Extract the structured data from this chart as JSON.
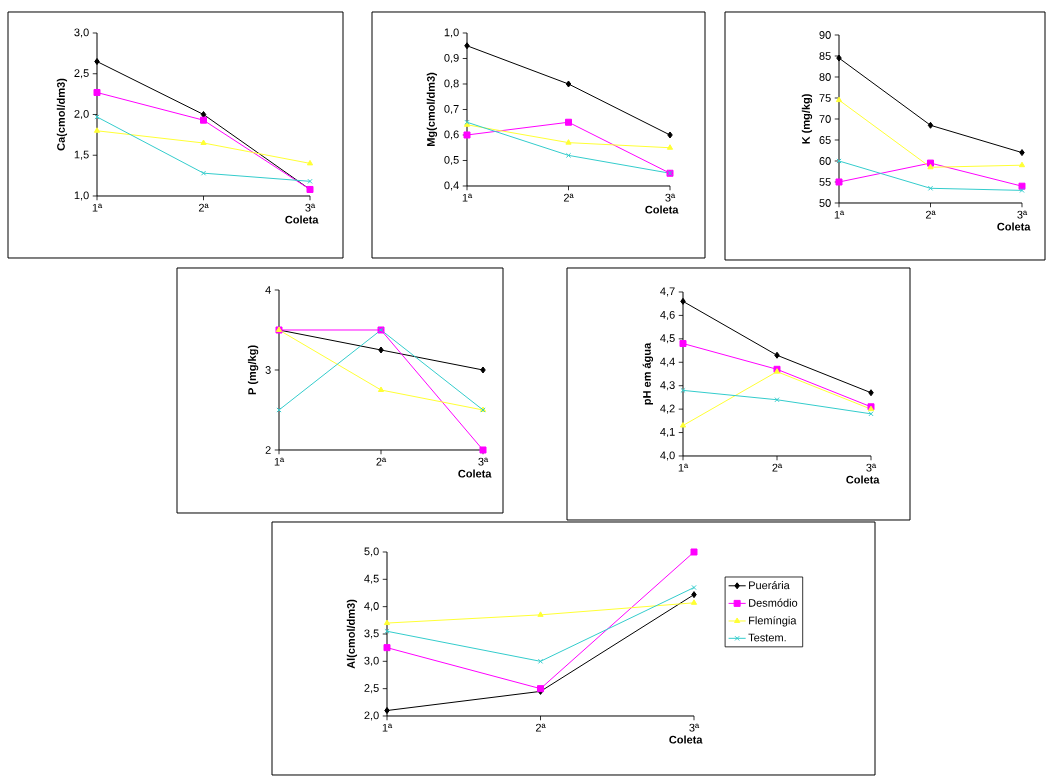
{
  "chart_data": [
    {
      "type": "line",
      "ylabel": "Ca(cmol/dm3)",
      "xlabel": "Coleta",
      "categories": [
        "1ª",
        "2ª",
        "3ª"
      ],
      "ylim": [
        1.0,
        3.0
      ],
      "yticks": [
        {
          "value": 1.0,
          "label": "1,0"
        },
        {
          "value": 1.5,
          "label": "1,5"
        },
        {
          "value": 2.0,
          "label": "2,0"
        },
        {
          "value": 2.5,
          "label": "2,5"
        },
        {
          "value": 3.0,
          "label": "3,0"
        }
      ],
      "legend": false,
      "series": [
        {
          "color": "#000000",
          "marker": "diamond",
          "values": [
            2.65,
            2.0,
            1.08
          ]
        },
        {
          "color": "#ff00ff",
          "marker": "square",
          "values": [
            2.27,
            1.93,
            1.08
          ]
        },
        {
          "color": "#ffff33",
          "marker": "triangle",
          "values": [
            1.8,
            1.65,
            1.4
          ]
        },
        {
          "color": "#33cccc",
          "marker": "cross",
          "values": [
            1.97,
            1.28,
            1.18
          ]
        }
      ]
    },
    {
      "type": "line",
      "ylabel": "Mg(cmol/dm3)",
      "xlabel": "Coleta",
      "categories": [
        "1ª",
        "2ª",
        "3ª"
      ],
      "ylim": [
        0.4,
        1.0
      ],
      "yticks": [
        {
          "value": 0.4,
          "label": "0,4"
        },
        {
          "value": 0.5,
          "label": "0,5"
        },
        {
          "value": 0.6,
          "label": "0,6"
        },
        {
          "value": 0.7,
          "label": "0,7"
        },
        {
          "value": 0.8,
          "label": "0,8"
        },
        {
          "value": 0.9,
          "label": "0,9"
        },
        {
          "value": 1.0,
          "label": "1,0"
        }
      ],
      "legend": false,
      "series": [
        {
          "color": "#000000",
          "marker": "diamond",
          "values": [
            0.95,
            0.8,
            0.6
          ]
        },
        {
          "color": "#ff00ff",
          "marker": "square",
          "values": [
            0.6,
            0.65,
            0.45
          ]
        },
        {
          "color": "#ffff33",
          "marker": "triangle",
          "values": [
            0.64,
            0.57,
            0.55
          ]
        },
        {
          "color": "#33cccc",
          "marker": "cross",
          "values": [
            0.65,
            0.52,
            0.45
          ]
        }
      ]
    },
    {
      "type": "line",
      "ylabel": "K (mg/kg)",
      "xlabel": "Coleta",
      "categories": [
        "1ª",
        "2ª",
        "3ª"
      ],
      "ylim": [
        50,
        90
      ],
      "yticks": [
        50,
        55,
        60,
        65,
        70,
        75,
        80,
        85,
        90
      ],
      "legend": false,
      "series": [
        {
          "color": "#000000",
          "marker": "diamond",
          "values": [
            84.5,
            68.5,
            62
          ]
        },
        {
          "color": "#ff00ff",
          "marker": "square",
          "values": [
            55,
            59.5,
            54
          ]
        },
        {
          "color": "#ffff33",
          "marker": "triangle",
          "values": [
            74.5,
            58.5,
            59
          ]
        },
        {
          "color": "#33cccc",
          "marker": "cross",
          "values": [
            60,
            53.5,
            53
          ]
        }
      ]
    },
    {
      "type": "line",
      "ylabel": "P (mg/kg)",
      "xlabel": "Coleta",
      "categories": [
        "1ª",
        "2ª",
        "3ª"
      ],
      "ylim": [
        2,
        4
      ],
      "yticks": [
        2,
        3,
        4
      ],
      "legend": false,
      "series": [
        {
          "color": "#000000",
          "marker": "diamond",
          "values": [
            3.5,
            3.25,
            3.0
          ]
        },
        {
          "color": "#ff00ff",
          "marker": "square",
          "values": [
            3.5,
            3.5,
            2.0
          ]
        },
        {
          "color": "#ffff33",
          "marker": "triangle",
          "values": [
            3.5,
            2.75,
            2.5
          ]
        },
        {
          "color": "#33cccc",
          "marker": "cross",
          "values": [
            2.5,
            3.5,
            2.5
          ]
        }
      ]
    },
    {
      "type": "line",
      "ylabel": "pH em água",
      "xlabel": "Coleta",
      "categories": [
        "1ª",
        "2ª",
        "3ª"
      ],
      "ylim": [
        4.0,
        4.7
      ],
      "yticks": [
        {
          "value": 4.0,
          "label": "4,0"
        },
        {
          "value": 4.1,
          "label": "4,1"
        },
        {
          "value": 4.2,
          "label": "4,2"
        },
        {
          "value": 4.3,
          "label": "4,3"
        },
        {
          "value": 4.4,
          "label": "4,4"
        },
        {
          "value": 4.5,
          "label": "4,5"
        },
        {
          "value": 4.6,
          "label": "4,6"
        },
        {
          "value": 4.7,
          "label": "4,7"
        }
      ],
      "legend": false,
      "series": [
        {
          "color": "#000000",
          "marker": "diamond",
          "values": [
            4.66,
            4.43,
            4.27
          ]
        },
        {
          "color": "#ff00ff",
          "marker": "square",
          "values": [
            4.48,
            4.37,
            4.21
          ]
        },
        {
          "color": "#ffff33",
          "marker": "triangle",
          "values": [
            4.13,
            4.36,
            4.2
          ]
        },
        {
          "color": "#33cccc",
          "marker": "cross",
          "values": [
            4.28,
            4.24,
            4.18
          ]
        }
      ]
    },
    {
      "type": "line",
      "ylabel": "Al(cmol/dm3)",
      "xlabel": "Coleta",
      "categories": [
        "1ª",
        "2ª",
        "3ª"
      ],
      "ylim": [
        2.0,
        5.0
      ],
      "yticks": [
        {
          "value": 2.0,
          "label": "2,0"
        },
        {
          "value": 2.5,
          "label": "2,5"
        },
        {
          "value": 3.0,
          "label": "3,0"
        },
        {
          "value": 3.5,
          "label": "3,5"
        },
        {
          "value": 4.0,
          "label": "4,0"
        },
        {
          "value": 4.5,
          "label": "4,5"
        },
        {
          "value": 5.0,
          "label": "5,0"
        }
      ],
      "legend": "right",
      "series": [
        {
          "name": "Puerária",
          "color": "#000000",
          "marker": "diamond",
          "values": [
            2.1,
            2.45,
            4.22
          ]
        },
        {
          "name": "Desmódio",
          "color": "#ff00ff",
          "marker": "square",
          "values": [
            3.25,
            2.5,
            5.0
          ]
        },
        {
          "name": "Flemíngia",
          "color": "#ffff33",
          "marker": "triangle",
          "values": [
            3.7,
            3.85,
            4.07
          ]
        },
        {
          "name": "Testem.",
          "color": "#33cccc",
          "marker": "cross",
          "values": [
            3.55,
            3.0,
            4.35
          ]
        }
      ]
    }
  ]
}
